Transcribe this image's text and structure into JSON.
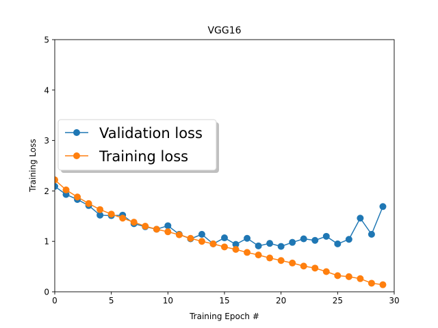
{
  "chart_data": {
    "type": "line",
    "title": "VGG16",
    "xlabel": "Training Epoch #",
    "ylabel": "Training Loss",
    "xlim": [
      0,
      30
    ],
    "ylim": [
      0,
      5
    ],
    "xticks": [
      0,
      5,
      10,
      15,
      20,
      25,
      30
    ],
    "yticks": [
      0,
      1,
      2,
      3,
      4,
      5
    ],
    "grid": false,
    "legend_position": "center-left",
    "x": [
      0,
      1,
      2,
      3,
      4,
      5,
      6,
      7,
      8,
      9,
      10,
      11,
      12,
      13,
      14,
      15,
      16,
      17,
      18,
      19,
      20,
      21,
      22,
      23,
      24,
      25,
      26,
      27,
      28,
      29
    ],
    "series": [
      {
        "name": "Validation loss",
        "color": "#1f77b4",
        "marker": "circle",
        "values": [
          2.09,
          1.93,
          1.83,
          1.71,
          1.52,
          1.51,
          1.52,
          1.35,
          1.29,
          1.24,
          1.31,
          1.14,
          1.05,
          1.14,
          0.95,
          1.07,
          0.94,
          1.06,
          0.91,
          0.96,
          0.9,
          0.98,
          1.05,
          1.02,
          1.1,
          0.95,
          1.04,
          1.46,
          1.14,
          1.69
        ]
      },
      {
        "name": "Training loss",
        "color": "#ff7f0e",
        "marker": "circle",
        "values": [
          2.22,
          2.02,
          1.88,
          1.75,
          1.63,
          1.54,
          1.46,
          1.38,
          1.3,
          1.24,
          1.19,
          1.13,
          1.06,
          1.0,
          0.95,
          0.89,
          0.84,
          0.78,
          0.73,
          0.67,
          0.62,
          0.57,
          0.51,
          0.47,
          0.4,
          0.32,
          0.3,
          0.26,
          0.17,
          0.14
        ]
      }
    ]
  }
}
